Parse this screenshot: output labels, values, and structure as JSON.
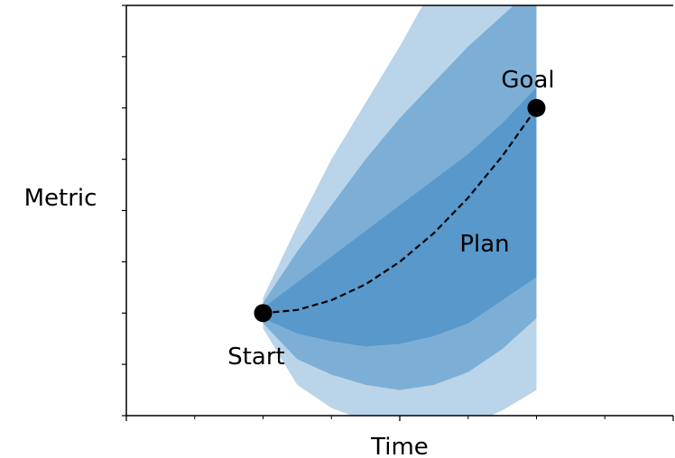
{
  "chart_data": {
    "type": "area",
    "xlabel": "Time",
    "ylabel": "Metric",
    "xlim": [
      0,
      4
    ],
    "ylim": [
      0,
      8
    ],
    "x_ticks_major": [
      0,
      2,
      4
    ],
    "x_ticks_minor": [
      0.5,
      1,
      1.5,
      2.5,
      3,
      3.5
    ],
    "y_ticks": [
      0,
      1,
      2,
      3,
      4,
      5,
      6,
      7,
      8
    ],
    "show_tick_labels": false,
    "grid": false,
    "axes_frame": "left-top-bottom",
    "colors": {
      "band": "#4a8fc6",
      "line": "#000000",
      "point": "#000000"
    },
    "points": [
      {
        "label": "Start",
        "x": 1,
        "y": 2
      },
      {
        "label": "Goal",
        "x": 3,
        "y": 6
      }
    ],
    "plan": {
      "label": "Plan",
      "style": "dashed",
      "x": [
        1,
        1.25,
        1.5,
        1.75,
        2,
        2.25,
        2.5,
        2.75,
        3
      ],
      "y": [
        2,
        2.06,
        2.25,
        2.56,
        3,
        3.56,
        4.25,
        5.06,
        6
      ]
    },
    "bands": [
      {
        "x": [
          1,
          1.25,
          1.5,
          1.75,
          2,
          2.25,
          2.5,
          2.75,
          3
        ],
        "lower": [
          1.9,
          1.6,
          1.45,
          1.35,
          1.4,
          1.55,
          1.8,
          2.25,
          2.7
        ],
        "upper": [
          2.1,
          2.6,
          3.1,
          3.6,
          4.1,
          4.6,
          5.1,
          5.7,
          6.4
        ]
      },
      {
        "x": [
          1,
          1.25,
          1.5,
          1.75,
          2,
          2.25,
          2.5,
          2.75,
          3
        ],
        "lower": [
          1.8,
          1.1,
          0.8,
          0.6,
          0.5,
          0.6,
          0.85,
          1.3,
          1.9
        ],
        "upper": [
          2.2,
          3.2,
          4.1,
          5.0,
          5.8,
          6.5,
          7.2,
          7.8,
          8.4
        ]
      },
      {
        "x": [
          1,
          1.25,
          1.5,
          1.75,
          2,
          2.25,
          2.5,
          2.75,
          3
        ],
        "lower": [
          1.7,
          0.6,
          0.15,
          -0.1,
          -0.3,
          -0.3,
          -0.2,
          0.1,
          0.5
        ],
        "upper": [
          2.3,
          3.7,
          5.0,
          6.1,
          7.2,
          8.4,
          9.3,
          9.8,
          10.2
        ]
      }
    ]
  }
}
